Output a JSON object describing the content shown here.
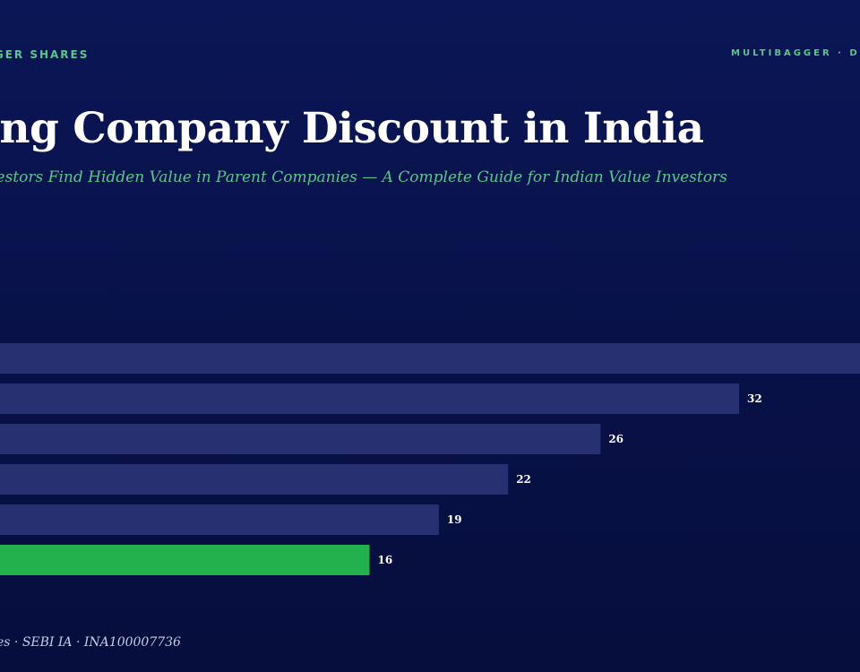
{
  "header": {
    "eyebrow_left": "GGER SHARES",
    "eyebrow_right": "MULTIBAGGER · D"
  },
  "title": "ing Company Discount in India",
  "subtitle": "nvestors Find Hidden Value in Parent Companies — A Complete Guide for Indian Value Investors",
  "footer": "es · SEBI IA · INA100007736",
  "colors": {
    "background": "#0a1550",
    "accent": "#5ec58c",
    "bar": "#273171",
    "bar_highlight": "#22b14c"
  },
  "chart_data": {
    "type": "bar",
    "orientation": "horizontal",
    "values": [
      null,
      32,
      26,
      22,
      19,
      16
    ],
    "value_labels": [
      "",
      "32",
      "26",
      "22",
      "19",
      "16"
    ],
    "highlight_index": 5,
    "grid": false
  }
}
